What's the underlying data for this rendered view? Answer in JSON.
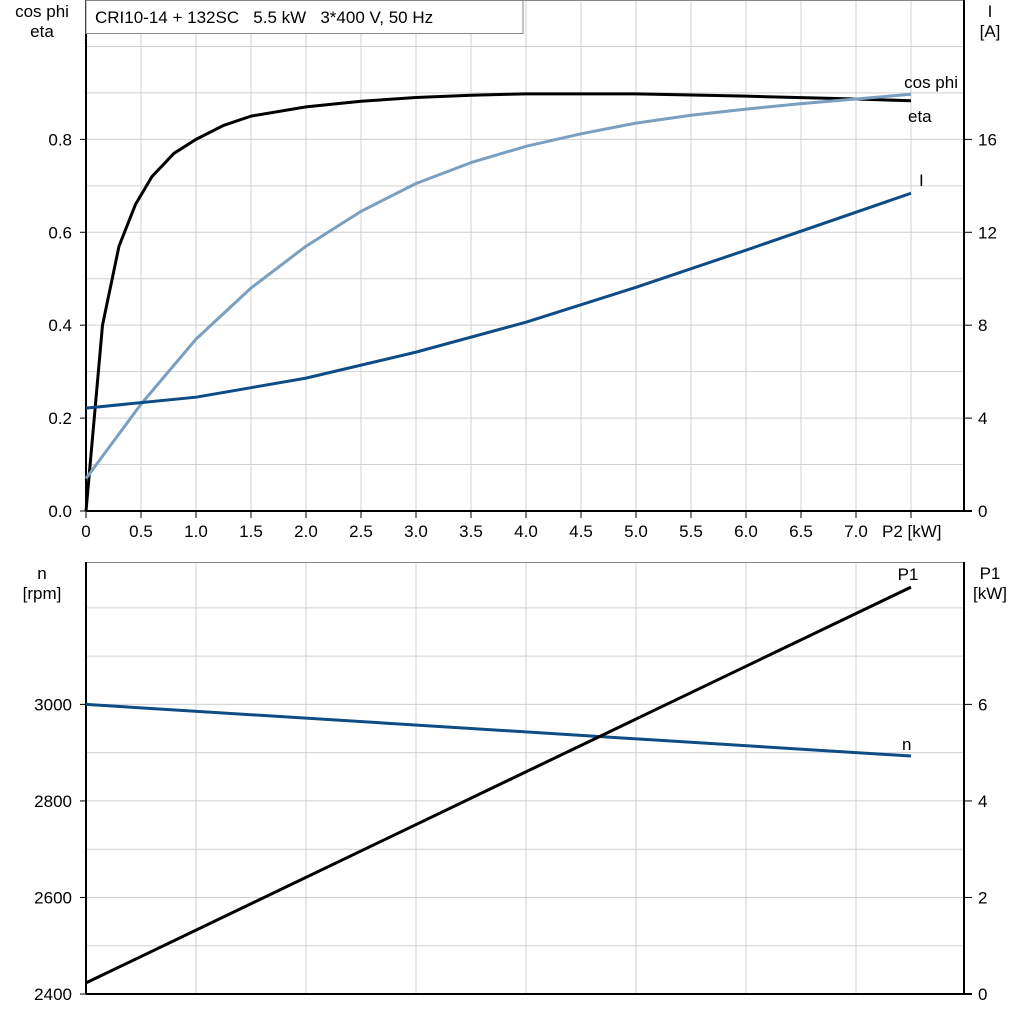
{
  "title": "CRI10-14 + 132SC   5.5 kW   3*400 V, 50 Hz",
  "colors": {
    "eta": "#000000",
    "cos_phi": "#7a9fc0",
    "I": "#0e4c85",
    "n": "#0e4c85",
    "P1": "#000000",
    "grid": "#d0d0d0"
  },
  "chart_data": [
    {
      "type": "line",
      "title": "CRI10-14 + 132SC   5.5 kW   3*400 V, 50 Hz",
      "xlabel": "P2 [kW]",
      "xlim": [
        0,
        7.5
      ],
      "xticks": [
        "0",
        "0.5",
        "1.0",
        "1.5",
        "2.0",
        "2.5",
        "3.0",
        "3.5",
        "4.0",
        "4.5",
        "5.0",
        "5.5",
        "6.0",
        "6.5",
        "7.0",
        "P2 [kW]"
      ],
      "ylabel_left": [
        "cos phi",
        "eta"
      ],
      "ylim_left": [
        0,
        1.1
      ],
      "yticks_left": [
        "0.0",
        "0.2",
        "0.4",
        "0.6",
        "0.8"
      ],
      "ylabel_right": [
        "I",
        "[A]"
      ],
      "ylim_right": [
        0,
        22
      ],
      "yticks_right": [
        "0",
        "4",
        "8",
        "12",
        "16"
      ],
      "grid": true,
      "series": [
        {
          "name": "eta",
          "axis": "left",
          "x": [
            0,
            0.15,
            0.3,
            0.45,
            0.6,
            0.8,
            1.0,
            1.25,
            1.5,
            2,
            2.5,
            3,
            3.5,
            4,
            5,
            6,
            7,
            7.5
          ],
          "y": [
            0,
            0.4,
            0.57,
            0.66,
            0.72,
            0.77,
            0.8,
            0.83,
            0.85,
            0.87,
            0.882,
            0.89,
            0.895,
            0.898,
            0.898,
            0.893,
            0.887,
            0.883
          ]
        },
        {
          "name": "cos phi",
          "axis": "left",
          "x": [
            0,
            0.5,
            1,
            1.5,
            2,
            2.5,
            3,
            3.5,
            4,
            4.5,
            5,
            5.5,
            6,
            6.5,
            7,
            7.5
          ],
          "y": [
            0.07,
            0.23,
            0.37,
            0.48,
            0.57,
            0.645,
            0.705,
            0.75,
            0.785,
            0.812,
            0.835,
            0.852,
            0.865,
            0.877,
            0.887,
            0.897
          ]
        },
        {
          "name": "I",
          "axis": "right",
          "x": [
            0,
            1,
            2,
            3,
            4,
            5,
            6,
            7.5
          ],
          "y": [
            4.43,
            4.9,
            5.72,
            6.84,
            8.13,
            9.63,
            11.23,
            13.68
          ]
        }
      ]
    },
    {
      "type": "line",
      "xlim": [
        0,
        7.5
      ],
      "ylabel_left": [
        "n",
        "[rpm]"
      ],
      "ylim_left": [
        2400,
        3295
      ],
      "yticks_left": [
        "2400",
        "2600",
        "2800",
        "3000"
      ],
      "ylabel_right": [
        "P1",
        "[kW]"
      ],
      "ylim_right": [
        0,
        8.95
      ],
      "yticks_right": [
        "0",
        "2",
        "4",
        "6"
      ],
      "grid": true,
      "series": [
        {
          "name": "n",
          "axis": "left",
          "x": [
            0,
            7.5
          ],
          "y": [
            3000,
            2893
          ]
        },
        {
          "name": "P1",
          "axis": "right",
          "x": [
            0,
            7.5
          ],
          "y": [
            0.23,
            8.43
          ]
        }
      ]
    }
  ]
}
